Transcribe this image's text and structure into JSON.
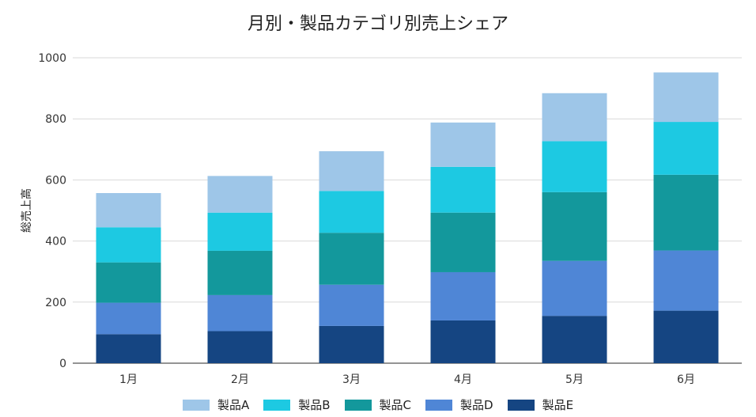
{
  "chart_data": {
    "type": "bar",
    "stacked": true,
    "title": "月別・製品カテゴリ別売上シェア",
    "xlabel": "",
    "ylabel": "総売上高",
    "ylim": [
      0,
      1000
    ],
    "yticks": [
      0,
      200,
      400,
      600,
      800,
      1000
    ],
    "grid": true,
    "legend_position": "bottom",
    "categories": [
      "1月",
      "2月",
      "3月",
      "4月",
      "5月",
      "6月"
    ],
    "series": [
      {
        "name": "製品E",
        "color": "#154582",
        "values": [
          95,
          105,
          122,
          140,
          155,
          172
        ]
      },
      {
        "name": "製品D",
        "color": "#4F86D6",
        "values": [
          103,
          118,
          135,
          158,
          180,
          197
        ]
      },
      {
        "name": "製品C",
        "color": "#13989C",
        "values": [
          132,
          145,
          170,
          195,
          225,
          248
        ]
      },
      {
        "name": "製品B",
        "color": "#1DC9E2",
        "values": [
          115,
          125,
          137,
          150,
          167,
          173
        ]
      },
      {
        "name": "製品A",
        "color": "#9EC6E8",
        "values": [
          112,
          120,
          130,
          145,
          157,
          162
        ]
      }
    ],
    "legend_order": [
      "製品A",
      "製品B",
      "製品C",
      "製品D",
      "製品E"
    ]
  }
}
